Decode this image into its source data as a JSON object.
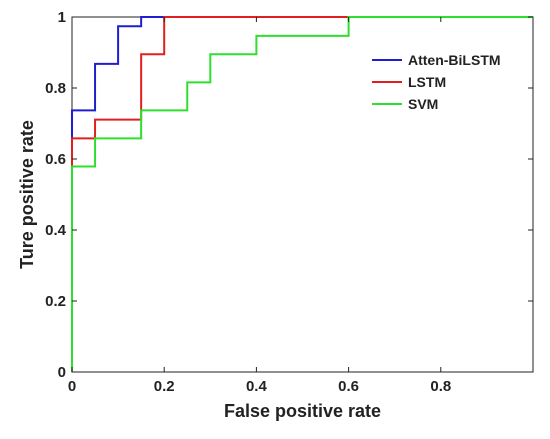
{
  "chart_data": {
    "type": "line",
    "title": "",
    "xlabel": "False positive rate",
    "ylabel": "Ture positive rate",
    "xlim": [
      0,
      1
    ],
    "ylim": [
      0,
      1
    ],
    "x_ticks": [
      0,
      0.2,
      0.4,
      0.6,
      0.8
    ],
    "x_tick_labels": [
      "0",
      "0.2",
      "0.4",
      "0.6",
      "0.8"
    ],
    "y_ticks": [
      0,
      0.2,
      0.4,
      0.6,
      0.8,
      1
    ],
    "y_tick_labels": [
      "0",
      "0.2",
      "0.4",
      "0.6",
      "0.8",
      "1"
    ],
    "grid": false,
    "legend_position": "top-right",
    "series": [
      {
        "name": "Atten-BiLSTM",
        "color": "#1f1fcf",
        "x": [
          0,
          0,
          0.05,
          0.05,
          0.1,
          0.1,
          0.15,
          0.15,
          1
        ],
        "y": [
          0,
          0.737,
          0.737,
          0.868,
          0.868,
          0.974,
          0.974,
          1,
          1
        ]
      },
      {
        "name": "LSTM",
        "color": "#e02020",
        "x": [
          0,
          0,
          0.05,
          0.05,
          0.15,
          0.15,
          0.2,
          0.2,
          1
        ],
        "y": [
          0,
          0.658,
          0.658,
          0.711,
          0.711,
          0.895,
          0.895,
          1,
          1
        ]
      },
      {
        "name": "SVM",
        "color": "#2ee02e",
        "x": [
          0,
          0,
          0.05,
          0.05,
          0.15,
          0.15,
          0.25,
          0.25,
          0.3,
          0.3,
          0.4,
          0.4,
          0.6,
          0.6,
          1
        ],
        "y": [
          0,
          0.579,
          0.579,
          0.658,
          0.658,
          0.737,
          0.737,
          0.816,
          0.816,
          0.895,
          0.895,
          0.947,
          0.947,
          1,
          1
        ]
      }
    ]
  }
}
